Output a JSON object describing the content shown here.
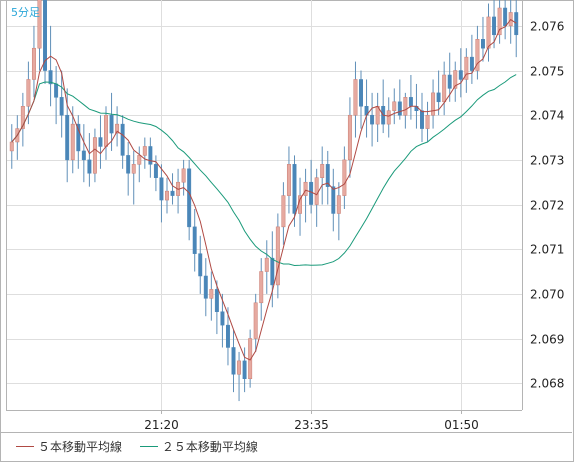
{
  "chart_data": {
    "type": "candlestick",
    "timeframe_label": "5分足",
    "x_tick_labels": [
      "21:20",
      "23:35",
      "01:50"
    ],
    "y_tick_labels": [
      "2.076",
      "2.075",
      "2.074",
      "2.073",
      "2.072",
      "2.071",
      "2.070",
      "2.069",
      "2.068"
    ],
    "ylim": [
      2.0674,
      2.0764
    ],
    "grid": true,
    "colors": {
      "up": "#e6a9a0",
      "down": "#4a86b8",
      "wick": "#5f8fb8",
      "ma5": "#b04a44",
      "ma25": "#1a9a7a",
      "grid": "#dedede",
      "axis": "#b4b4b4"
    },
    "legend": [
      {
        "label": "５本移動平均線",
        "color": "#b04a44"
      },
      {
        "label": "２５本移動平均線",
        "color": "#1a9a7a"
      }
    ],
    "ohlc": [
      [
        2.0732,
        2.0738,
        2.0728,
        2.0734
      ],
      [
        2.0734,
        2.074,
        2.073,
        2.0737
      ],
      [
        2.0737,
        2.0745,
        2.0733,
        2.0742
      ],
      [
        2.0742,
        2.0752,
        2.0738,
        2.0748
      ],
      [
        2.0748,
        2.076,
        2.0744,
        2.0755
      ],
      [
        2.0755,
        2.077,
        2.075,
        2.0766
      ],
      [
        2.0766,
        2.077,
        2.0747,
        2.075
      ],
      [
        2.075,
        2.076,
        2.0742,
        2.0747
      ],
      [
        2.0747,
        2.0751,
        2.0738,
        2.0744
      ],
      [
        2.0744,
        2.075,
        2.0735,
        2.074
      ],
      [
        2.074,
        2.0746,
        2.0725,
        2.073
      ],
      [
        2.073,
        2.0742,
        2.0727,
        2.0738
      ],
      [
        2.0738,
        2.074,
        2.0728,
        2.0732
      ],
      [
        2.0732,
        2.0738,
        2.0725,
        2.073
      ],
      [
        2.073,
        2.0736,
        2.0724,
        2.0727
      ],
      [
        2.0727,
        2.0737,
        2.0725,
        2.0735
      ],
      [
        2.0735,
        2.074,
        2.0728,
        2.0733
      ],
      [
        2.0733,
        2.0742,
        2.073,
        2.074
      ],
      [
        2.074,
        2.0745,
        2.0732,
        2.0736
      ],
      [
        2.0736,
        2.0742,
        2.0733,
        2.0738
      ],
      [
        2.0738,
        2.074,
        2.0728,
        2.0731
      ],
      [
        2.0731,
        2.0734,
        2.0722,
        2.0727
      ],
      [
        2.0727,
        2.0732,
        2.072,
        2.0729
      ],
      [
        2.0729,
        2.0733,
        2.0725,
        2.0731
      ],
      [
        2.0731,
        2.0735,
        2.0728,
        2.0733
      ],
      [
        2.0733,
        2.0735,
        2.0726,
        2.0729
      ],
      [
        2.0729,
        2.0731,
        2.0723,
        2.0726
      ],
      [
        2.0726,
        2.0729,
        2.0716,
        2.0721
      ],
      [
        2.0721,
        2.0726,
        2.0718,
        2.0723
      ],
      [
        2.0723,
        2.0727,
        2.072,
        2.0722
      ],
      [
        2.0722,
        2.0728,
        2.0718,
        2.0725
      ],
      [
        2.0725,
        2.073,
        2.0722,
        2.0728
      ],
      [
        2.0728,
        2.073,
        2.0712,
        2.0715
      ],
      [
        2.0715,
        2.0719,
        2.0705,
        2.0709
      ],
      [
        2.0709,
        2.0713,
        2.07,
        2.0704
      ],
      [
        2.0704,
        2.0708,
        2.0695,
        2.0699
      ],
      [
        2.0699,
        2.0705,
        2.0694,
        2.0701
      ],
      [
        2.0701,
        2.0703,
        2.0691,
        2.0696
      ],
      [
        2.0696,
        2.07,
        2.0688,
        2.0693
      ],
      [
        2.0693,
        2.0697,
        2.0684,
        2.0688
      ],
      [
        2.0688,
        2.0692,
        2.0678,
        2.0682
      ],
      [
        2.0682,
        2.0687,
        2.0676,
        2.0685
      ],
      [
        2.0685,
        2.0688,
        2.0678,
        2.0681
      ],
      [
        2.0681,
        2.0692,
        2.0679,
        2.069
      ],
      [
        2.069,
        2.07,
        2.0687,
        2.0698
      ],
      [
        2.0698,
        2.0708,
        2.0694,
        2.0705
      ],
      [
        2.0705,
        2.0712,
        2.07,
        2.0708
      ],
      [
        2.0708,
        2.0714,
        2.0697,
        2.0702
      ],
      [
        2.0702,
        2.0718,
        2.0699,
        2.0715
      ],
      [
        2.0715,
        2.0725,
        2.0711,
        2.0722
      ],
      [
        2.0722,
        2.0733,
        2.0718,
        2.0729
      ],
      [
        2.0729,
        2.0731,
        2.0715,
        2.0718
      ],
      [
        2.0718,
        2.0726,
        2.0713,
        2.0722
      ],
      [
        2.0722,
        2.0728,
        2.0716,
        2.0725
      ],
      [
        2.0725,
        2.073,
        2.0718,
        2.072
      ],
      [
        2.072,
        2.0728,
        2.0715,
        2.0726
      ],
      [
        2.0726,
        2.0733,
        2.072,
        2.0729
      ],
      [
        2.0729,
        2.0732,
        2.072,
        2.0724
      ],
      [
        2.0724,
        2.0728,
        2.0714,
        2.0718
      ],
      [
        2.0718,
        2.0725,
        2.0712,
        2.0722
      ],
      [
        2.0722,
        2.0733,
        2.0719,
        2.073
      ],
      [
        2.073,
        2.0744,
        2.0726,
        2.074
      ],
      [
        2.074,
        2.0752,
        2.0735,
        2.0748
      ],
      [
        2.0748,
        2.075,
        2.0737,
        2.0742
      ],
      [
        2.0742,
        2.0748,
        2.0735,
        2.074
      ],
      [
        2.074,
        2.0745,
        2.0733,
        2.0738
      ],
      [
        2.0738,
        2.0745,
        2.0734,
        2.0742
      ],
      [
        2.0742,
        2.0748,
        2.0736,
        2.0738
      ],
      [
        2.0738,
        2.0744,
        2.0735,
        2.0741
      ],
      [
        2.0741,
        2.0746,
        2.0738,
        2.0743
      ],
      [
        2.0743,
        2.0748,
        2.0739,
        2.074
      ],
      [
        2.074,
        2.0745,
        2.0737,
        2.0744
      ],
      [
        2.0744,
        2.0749,
        2.0739,
        2.0742
      ],
      [
        2.0742,
        2.0747,
        2.0737,
        2.0741
      ],
      [
        2.0741,
        2.0745,
        2.0734,
        2.0737
      ],
      [
        2.0737,
        2.0743,
        2.0734,
        2.074
      ],
      [
        2.074,
        2.0748,
        2.0737,
        2.0745
      ],
      [
        2.0745,
        2.075,
        2.074,
        2.0743
      ],
      [
        2.0743,
        2.0752,
        2.074,
        2.0749
      ],
      [
        2.0749,
        2.0754,
        2.0743,
        2.0746
      ],
      [
        2.0746,
        2.0752,
        2.0743,
        2.075
      ],
      [
        2.075,
        2.0755,
        2.0744,
        2.0748
      ],
      [
        2.0748,
        2.0755,
        2.0745,
        2.0753
      ],
      [
        2.0753,
        2.0758,
        2.0747,
        2.075
      ],
      [
        2.075,
        2.076,
        2.0748,
        2.0757
      ],
      [
        2.0757,
        2.0762,
        2.0752,
        2.0755
      ],
      [
        2.0755,
        2.0765,
        2.0752,
        2.0762
      ],
      [
        2.0762,
        2.0766,
        2.0755,
        2.0758
      ],
      [
        2.0758,
        2.0767,
        2.0756,
        2.0764
      ],
      [
        2.0764,
        2.0767,
        2.0757,
        2.076
      ],
      [
        2.076,
        2.0766,
        2.0756,
        2.0763
      ],
      [
        2.0763,
        2.0767,
        2.0753,
        2.0758
      ]
    ]
  }
}
